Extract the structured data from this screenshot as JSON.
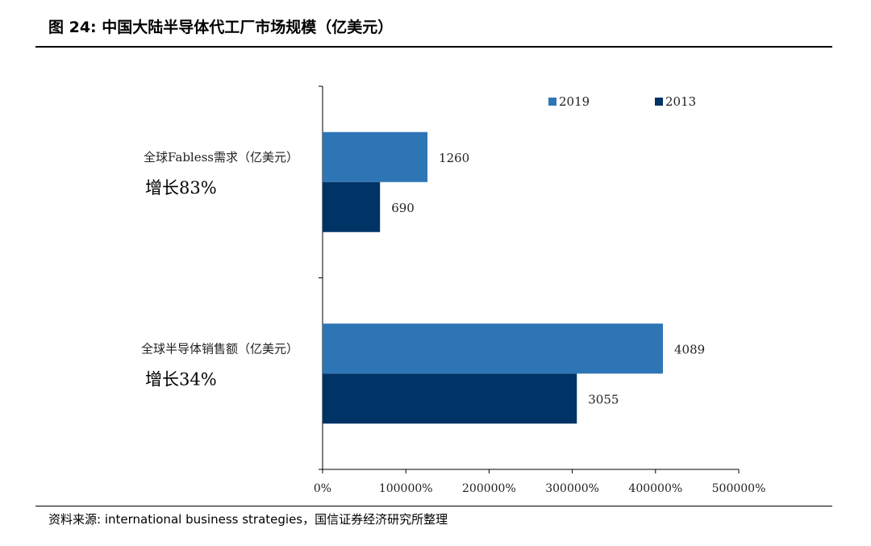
{
  "figure": {
    "title": "图 24:  中国大陆半导体代工厂市场规模（亿美元）",
    "source": "资料来源: international business strategies，国信证券经济研究所整理"
  },
  "chart_data": {
    "type": "bar",
    "orientation": "horizontal",
    "categories": [
      "全球Fabless需求（亿美元）",
      "全球半导体销售额（亿美元）"
    ],
    "annotations": [
      "增长83%",
      "增长34%"
    ],
    "series": [
      {
        "name": "2019",
        "values": [
          1260,
          4089
        ],
        "color": "#2e75b6"
      },
      {
        "name": "2013",
        "values": [
          690,
          3055
        ],
        "color": "#003366"
      }
    ],
    "x_ticks": [
      "0%",
      "100000%",
      "200000%",
      "300000%",
      "400000%",
      "500000%"
    ],
    "xlim": [
      0,
      5000
    ],
    "grid": false,
    "legend": "top-right"
  }
}
